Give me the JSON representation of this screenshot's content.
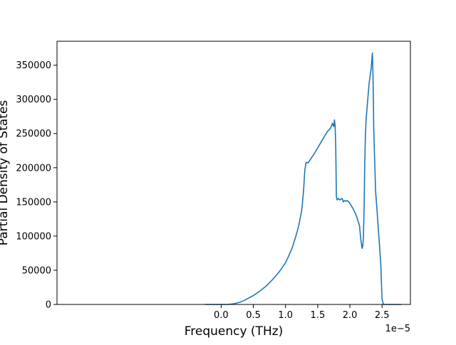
{
  "chart_data": {
    "type": "line",
    "title": "",
    "xlabel": "Frequency (THz)",
    "ylabel": "Partial Density of States",
    "x_offset_label": "1e−5",
    "xlim": [
      -2.55,
      2.94
    ],
    "ylim": [
      0,
      385000
    ],
    "x_ticks": [
      0.0,
      0.5,
      1.0,
      1.5,
      2.0,
      2.5
    ],
    "x_tick_labels": [
      "0.0",
      "0.5",
      "1.0",
      "1.5",
      "2.0",
      "2.5"
    ],
    "y_ticks": [
      0,
      50000,
      100000,
      150000,
      200000,
      250000,
      300000,
      350000
    ],
    "y_tick_labels": [
      "0",
      "50000",
      "100000",
      "150000",
      "200000",
      "250000",
      "300000",
      "350000"
    ],
    "grid": false,
    "line_color": "#1f77b4",
    "series": [
      {
        "x": [
          -0.25,
          0.0,
          0.1,
          0.2,
          0.3,
          0.35,
          0.4,
          0.5,
          0.6,
          0.7,
          0.8,
          0.9,
          1.0,
          1.05,
          1.1,
          1.15,
          1.2,
          1.23,
          1.25,
          1.26,
          1.28,
          1.3,
          1.32,
          1.35,
          1.4,
          1.45,
          1.5,
          1.55,
          1.6,
          1.65,
          1.7,
          1.73,
          1.75,
          1.76,
          1.77,
          1.78,
          1.79,
          1.8,
          1.82,
          1.84,
          1.86,
          1.88,
          1.9,
          1.92,
          1.94,
          1.96,
          2.0,
          2.05,
          2.1,
          2.15,
          2.17,
          2.19,
          2.2,
          2.21,
          2.22,
          2.23,
          2.24,
          2.25,
          2.27,
          2.3,
          2.33,
          2.35,
          2.36,
          2.37,
          2.38,
          2.39,
          2.4,
          2.42,
          2.45,
          2.48,
          2.5,
          2.52,
          2.53,
          2.54,
          2.55,
          2.6,
          2.8
        ],
        "y": [
          0,
          0,
          0,
          1000,
          3500,
          5500,
          8000,
          13000,
          19500,
          27000,
          36500,
          47500,
          61000,
          71000,
          82000,
          96500,
          113000,
          127000,
          137000,
          145000,
          166000,
          196000,
          208000,
          207000,
          214000,
          221000,
          229000,
          237000,
          245000,
          253000,
          258000,
          265000,
          260000,
          270000,
          262000,
          233000,
          158000,
          153000,
          155000,
          153000,
          154000,
          155000,
          150000,
          152000,
          151000,
          152000,
          148000,
          140000,
          130000,
          115000,
          95000,
          82000,
          85000,
          97000,
          140000,
          205000,
          245000,
          268000,
          292000,
          325000,
          345000,
          368000,
          330000,
          260000,
          225000,
          195000,
          165000,
          140000,
          100000,
          60000,
          8000,
          0,
          0,
          0,
          0,
          0,
          0
        ]
      }
    ]
  }
}
